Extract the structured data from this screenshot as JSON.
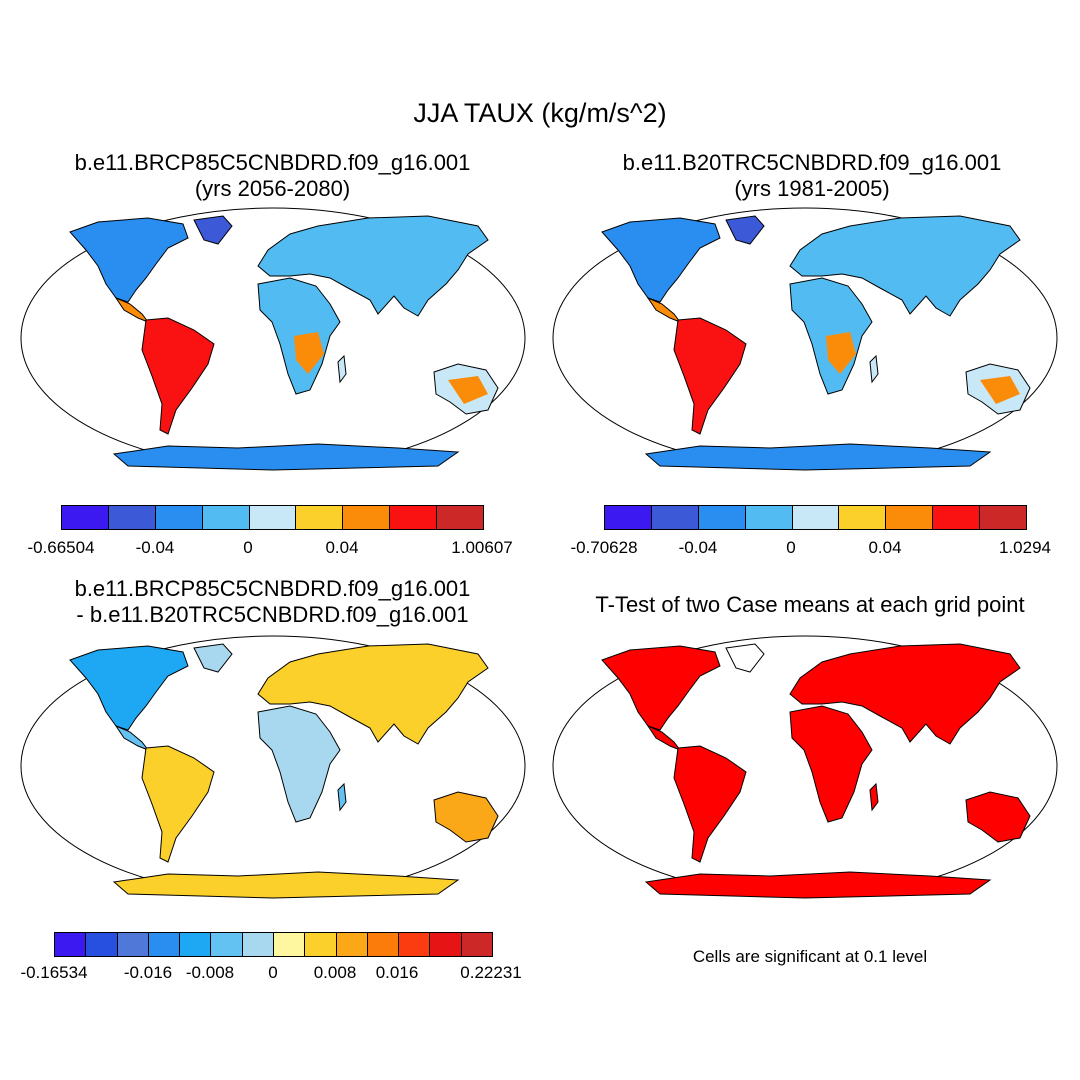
{
  "title": "JJA TAUX (kg/m/s^2)",
  "panels": [
    {
      "id": "p1",
      "title_lines": [
        "b.e11.BRCP85C5CNBDRD.f09_g16.001",
        "(yrs 2056-2080)"
      ],
      "colorbar": {
        "colors": [
          "#3c19f0",
          "#3c5ad8",
          "#2a8ef0",
          "#52bcf2",
          "#c8e8f8",
          "#fbd02a",
          "#fb8c0a",
          "#fa1212",
          "#cc2828"
        ],
        "labels": [
          "-0.66504",
          "-0.04",
          "0",
          "0.04",
          "1.00607"
        ]
      }
    },
    {
      "id": "p2",
      "title_lines": [
        "b.e11.B20TRC5CNBDRD.f09_g16.001",
        "(yrs 1981-2005)"
      ],
      "colorbar": {
        "colors": [
          "#3c19f0",
          "#3c5ad8",
          "#2a8ef0",
          "#52bcf2",
          "#c8e8f8",
          "#fbd02a",
          "#fb8c0a",
          "#fa1212",
          "#cc2828"
        ],
        "labels": [
          "-0.70628",
          "-0.04",
          "0",
          "0.04",
          "1.0294"
        ]
      }
    },
    {
      "id": "p3",
      "title_lines": [
        "b.e11.BRCP85C5CNBDRD.f09_g16.001",
        "- b.e11.B20TRC5CNBDRD.f09_g16.001"
      ],
      "colorbar": {
        "colors": [
          "#3c19f0",
          "#2850e0",
          "#5078d8",
          "#2a8ef0",
          "#1ea8f4",
          "#64c2f2",
          "#a8d8f0",
          "#fff6a0",
          "#fbd02a",
          "#fba818",
          "#fb7c0a",
          "#fa3c10",
          "#e61414",
          "#cc2828"
        ],
        "labels": [
          "-0.16534",
          "-0.016",
          "-0.008",
          "0",
          "0.008",
          "0.016",
          "0.22231"
        ]
      }
    },
    {
      "id": "p4",
      "title_lines": [
        "T-Test of two Case means at each grid point"
      ],
      "note": "Cells are significant at 0.1 level",
      "significance_color": "#ff0000"
    }
  ]
}
